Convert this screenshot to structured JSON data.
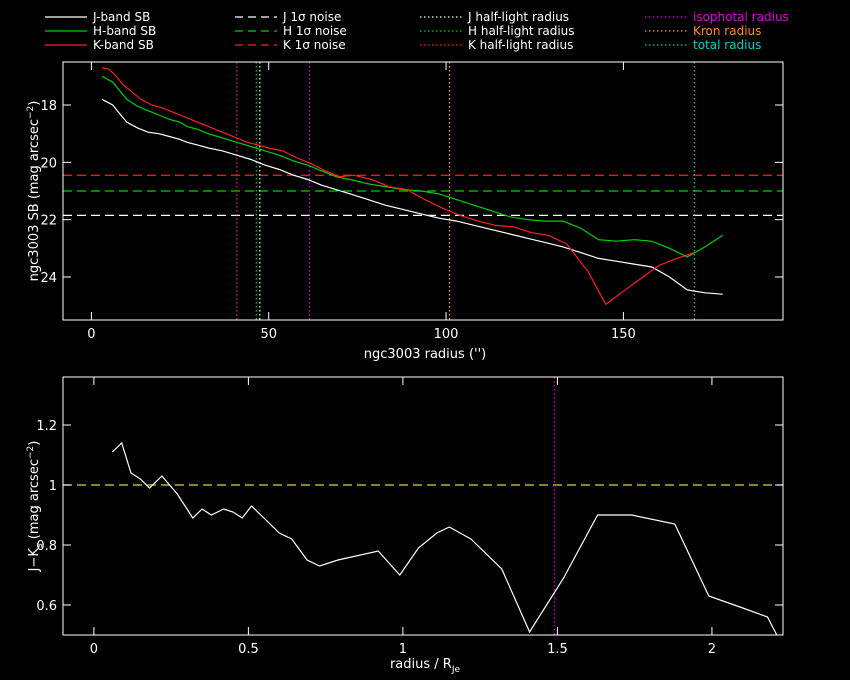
{
  "colors": {
    "background": "#000000",
    "axes": "#ffffff",
    "j": "#ffffff",
    "h": "#00d000",
    "k": "#ff2020",
    "isophotal": "#e000e0",
    "kron": "#ff8c1a",
    "total": "#00d0d0",
    "color_ref": "#e0d040"
  },
  "legend": [
    {
      "label": "J-band SB",
      "color": "#ffffff",
      "style": "solid"
    },
    {
      "label": "H-band SB",
      "color": "#00d000",
      "style": "solid"
    },
    {
      "label": "K-band SB",
      "color": "#ff2020",
      "style": "solid"
    },
    {
      "label": "J 1σ noise",
      "color": "#ffffff",
      "style": "dashed"
    },
    {
      "label": "H 1σ noise",
      "color": "#00d000",
      "style": "dashed"
    },
    {
      "label": "K 1σ noise",
      "color": "#ff2020",
      "style": "dashed"
    },
    {
      "label": "J half-light radius",
      "color": "#ffffff",
      "style": "dotted"
    },
    {
      "label": "H half-light radius",
      "color": "#00d000",
      "style": "dotted"
    },
    {
      "label": "K half-light radius",
      "color": "#ff2020",
      "style": "dotted"
    },
    {
      "label": "isophotal radius",
      "color": "#e000e0",
      "style": "dotted",
      "text_color": "#e000e0"
    },
    {
      "label": "Kron radius",
      "color": "#ff8c1a",
      "style": "dotted",
      "text_color": "#ff8c1a"
    },
    {
      "label": "total radius",
      "color": "#00d0d0",
      "style": "dotted",
      "text_color": "#00d0d0"
    }
  ],
  "chart_data": [
    {
      "type": "line",
      "xlabel": "ngc3003 radius ('')",
      "ylabel": "ngc3003 SB (mag arcsec",
      "ylabel_sup": "−2",
      "xlim": [
        -8,
        195
      ],
      "ylim": [
        25.5,
        16.5
      ],
      "y_inverted": true,
      "xticks": [
        0,
        50,
        100,
        150
      ],
      "yticks": [
        18,
        20,
        22,
        24
      ],
      "series": [
        {
          "name": "J-band SB",
          "color": "#ffffff",
          "x": [
            3,
            6,
            8,
            10,
            13,
            16,
            19,
            22,
            25,
            27,
            30,
            33,
            37,
            41,
            45,
            49,
            53,
            57,
            61,
            65,
            69,
            73,
            78,
            83,
            88,
            93,
            98,
            103,
            108,
            113,
            118,
            123,
            128,
            133,
            138,
            143,
            148,
            153,
            158,
            163,
            168,
            173,
            178
          ],
          "y": [
            17.8,
            18.0,
            18.3,
            18.6,
            18.8,
            18.95,
            19.0,
            19.1,
            19.2,
            19.3,
            19.4,
            19.5,
            19.6,
            19.75,
            19.9,
            20.1,
            20.25,
            20.45,
            20.6,
            20.8,
            20.95,
            21.1,
            21.3,
            21.5,
            21.65,
            21.8,
            21.95,
            22.05,
            22.2,
            22.35,
            22.5,
            22.65,
            22.8,
            22.95,
            23.15,
            23.35,
            23.45,
            23.55,
            23.65,
            24.0,
            24.45,
            24.55,
            24.6
          ]
        },
        {
          "name": "H-band SB",
          "color": "#00d000",
          "x": [
            3,
            6,
            8,
            10,
            13,
            16,
            19,
            22,
            25,
            27,
            30,
            33,
            37,
            41,
            45,
            49,
            53,
            57,
            61,
            65,
            69,
            73,
            78,
            83,
            88,
            93,
            98,
            103,
            108,
            113,
            118,
            123,
            128,
            133,
            138,
            143,
            148,
            153,
            158,
            163,
            168,
            173,
            178
          ],
          "y": [
            17.0,
            17.2,
            17.5,
            17.8,
            18.05,
            18.2,
            18.35,
            18.5,
            18.6,
            18.75,
            18.85,
            19.0,
            19.15,
            19.3,
            19.45,
            19.6,
            19.75,
            19.95,
            20.1,
            20.3,
            20.5,
            20.6,
            20.75,
            20.85,
            20.95,
            21.0,
            21.1,
            21.3,
            21.5,
            21.7,
            21.9,
            22.0,
            22.05,
            22.05,
            22.3,
            22.7,
            22.75,
            22.7,
            22.75,
            23.0,
            23.3,
            22.95,
            22.55
          ]
        },
        {
          "name": "K-band SB",
          "color": "#ff2020",
          "x": [
            3,
            5,
            7,
            9,
            11,
            14,
            17,
            20,
            23,
            26,
            29,
            32,
            35,
            38,
            41,
            44,
            47,
            50,
            54,
            58,
            62,
            66,
            70,
            74,
            79,
            84,
            89,
            94,
            99,
            104,
            109,
            114,
            119,
            124,
            129,
            134,
            140,
            145,
            150,
            155,
            160,
            165,
            170
          ],
          "y": [
            16.7,
            16.75,
            17.0,
            17.3,
            17.5,
            17.8,
            18.0,
            18.1,
            18.25,
            18.4,
            18.55,
            18.7,
            18.85,
            19.0,
            19.15,
            19.3,
            19.4,
            19.5,
            19.6,
            19.85,
            20.05,
            20.3,
            20.5,
            20.45,
            20.6,
            20.85,
            20.95,
            21.3,
            21.6,
            21.85,
            22.05,
            22.2,
            22.25,
            22.45,
            22.55,
            22.85,
            23.8,
            24.95,
            24.5,
            24.05,
            23.6,
            23.35,
            23.15
          ]
        }
      ],
      "hlines": [
        {
          "name": "J 1σ noise",
          "y": 21.85,
          "color": "#ffffff"
        },
        {
          "name": "H 1σ noise",
          "y": 21.0,
          "color": "#00d000"
        },
        {
          "name": "K 1σ noise",
          "y": 20.45,
          "color": "#ff2020"
        }
      ],
      "vlines": [
        {
          "name": "K half-light radius",
          "x": 41.0,
          "color": "#ff2020"
        },
        {
          "name": "H half-light radius",
          "x": 46.5,
          "color": "#00d000"
        },
        {
          "name": "J half-light radius",
          "x": 47.5,
          "color": "#ffffff"
        },
        {
          "name": "isophotal radius",
          "x": 61.5,
          "color": "#e000e0"
        },
        {
          "name": "Kron radius",
          "x": 101.0,
          "color": "#ff8c1a"
        },
        {
          "name": "total radius",
          "x": 170.0,
          "color": "#00d0d0"
        }
      ]
    },
    {
      "type": "line",
      "xlabel": "radius / R",
      "xlabel_sub": "Je",
      "ylabel": "J−K",
      "ylabel_sub": "s",
      "ylabel_rest": " (mag arcsec",
      "ylabel_sup": "−2",
      "xlim": [
        -0.1,
        2.23
      ],
      "ylim": [
        0.5,
        1.36
      ],
      "xticks": [
        0,
        0.5,
        1,
        1.5,
        2
      ],
      "xticklabels": [
        "0",
        "0.5",
        "1",
        "1.5",
        "2"
      ],
      "yticks": [
        0.6,
        0.8,
        1.0,
        1.2
      ],
      "yticklabels": [
        "0.6",
        "0.8",
        "1",
        "1.2"
      ],
      "series": [
        {
          "name": "J−Ks",
          "color": "#ffffff",
          "x": [
            0.06,
            0.09,
            0.12,
            0.15,
            0.18,
            0.22,
            0.27,
            0.32,
            0.35,
            0.38,
            0.42,
            0.45,
            0.48,
            0.51,
            0.55,
            0.6,
            0.64,
            0.69,
            0.73,
            0.79,
            0.92,
            0.99,
            1.05,
            1.11,
            1.15,
            1.22,
            1.32,
            1.41,
            1.52,
            1.63,
            1.74,
            1.88,
            1.99,
            2.1,
            2.18,
            2.21
          ],
          "y": [
            1.11,
            1.14,
            1.04,
            1.02,
            0.99,
            1.03,
            0.97,
            0.89,
            0.92,
            0.9,
            0.92,
            0.91,
            0.89,
            0.93,
            0.89,
            0.84,
            0.82,
            0.75,
            0.73,
            0.75,
            0.78,
            0.7,
            0.79,
            0.84,
            0.86,
            0.82,
            0.72,
            0.51,
            0.69,
            0.9,
            0.9,
            0.87,
            0.63,
            0.59,
            0.56,
            0.5
          ]
        }
      ],
      "hlines": [
        {
          "name": "J−K reference",
          "y": 1.0,
          "color": "#e0d040"
        }
      ],
      "vlines": [
        {
          "name": "isophotal radius",
          "x": 1.49,
          "color": "#e000e0"
        }
      ]
    }
  ]
}
